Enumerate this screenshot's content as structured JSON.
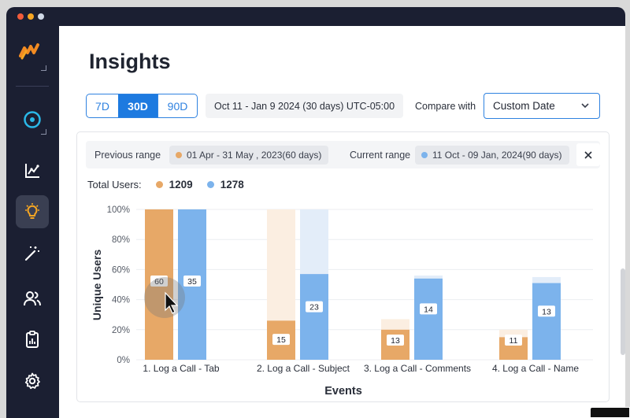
{
  "window": {
    "traffic_lights": [
      "#f25c3b",
      "#f6a623",
      "#cfd8e6"
    ]
  },
  "sidebar": {
    "logo_icon": "waves-logo-icon",
    "items": [
      {
        "icon": "compass-icon",
        "active": false
      },
      {
        "icon": "line-chart-icon",
        "active": false
      },
      {
        "icon": "lightbulb-icon",
        "active": true
      },
      {
        "icon": "magic-wand-icon",
        "active": false
      },
      {
        "icon": "users-icon",
        "active": false
      },
      {
        "icon": "clipboard-report-icon",
        "active": false
      },
      {
        "icon": "gear-icon",
        "active": false
      }
    ],
    "accent": "#2ab8e8",
    "active_accent": "#f6a623"
  },
  "header": {
    "title": "Insights"
  },
  "toolbar": {
    "ranges": [
      "7D",
      "30D",
      "90D"
    ],
    "selected_range": "30D",
    "date_range": "Oct 11 -  Jan 9 2024 (30 days) UTC-05:00",
    "compare_label": "Compare with",
    "compare_value": "Custom Date"
  },
  "comparison": {
    "previous_label": "Previous range",
    "previous_value": "01 Apr - 31 May , 2023(60 days)",
    "current_label": "Current range",
    "current_value": "11 Oct - 09 Jan, 2024(90 days)",
    "close": "×"
  },
  "totals": {
    "label": "Total Users:",
    "previous": "1209",
    "current": "1278"
  },
  "colors": {
    "previous": "#e7a867",
    "current": "#7cb3ec",
    "previous_faint": "#fbeee1",
    "current_faint": "#e3edf9"
  },
  "chart_data": {
    "type": "bar",
    "xlabel": "Events",
    "ylabel": "Unique Users",
    "ylim": [
      0,
      100
    ],
    "yticks": [
      "0%",
      "20%",
      "40%",
      "60%",
      "80%",
      "100%"
    ],
    "categories": [
      "1. Log a Call - Tab",
      "2. Log a Call - Subject",
      "3. Log a Call - Comments",
      "4. Log a Call - Name"
    ],
    "series": [
      {
        "key": "previous",
        "values": [
          100,
          26,
          20,
          15
        ],
        "faint": [
          100,
          100,
          27,
          20
        ],
        "labels": [
          "60",
          "15",
          "13",
          "11"
        ]
      },
      {
        "key": "current",
        "values": [
          100,
          57,
          54,
          51
        ],
        "faint": [
          100,
          100,
          56,
          55
        ],
        "labels": [
          "35",
          "23",
          "14",
          "13"
        ]
      }
    ]
  }
}
